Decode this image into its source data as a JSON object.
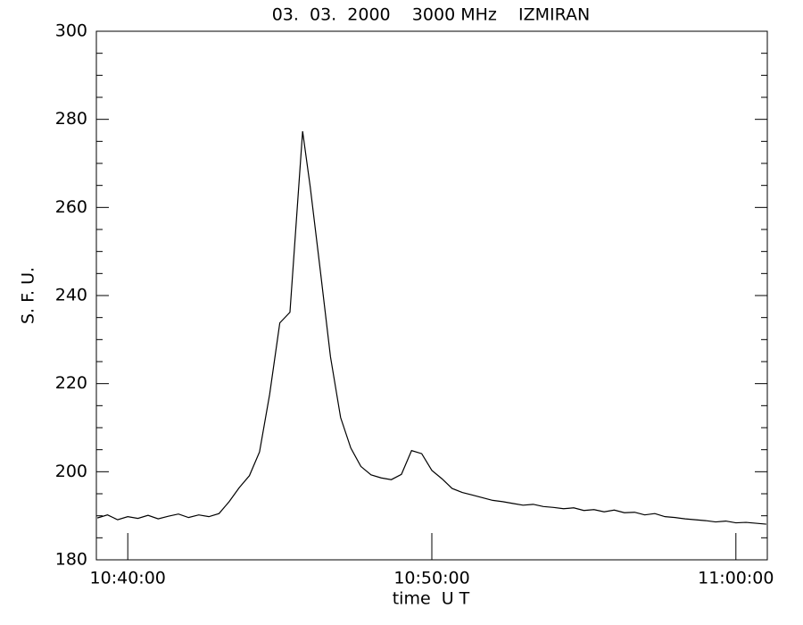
{
  "chart_data": {
    "type": "line",
    "title": "03.  03.  2000    3000 MHz    IZMIRAN",
    "x_label": "time  U T",
    "y_label": "S. F. U.",
    "x": [
      "10:39:00",
      "10:39:20",
      "10:39:40",
      "10:40:00",
      "10:40:20",
      "10:40:40",
      "10:41:00",
      "10:41:20",
      "10:41:40",
      "10:42:00",
      "10:42:20",
      "10:42:40",
      "10:43:00",
      "10:43:20",
      "10:43:40",
      "10:44:00",
      "10:44:20",
      "10:44:40",
      "10:45:00",
      "10:45:20",
      "10:45:45",
      "10:46:00",
      "10:46:20",
      "10:46:40",
      "10:47:00",
      "10:47:20",
      "10:47:40",
      "10:48:00",
      "10:48:20",
      "10:48:40",
      "10:49:00",
      "10:49:20",
      "10:49:40",
      "10:50:00",
      "10:50:20",
      "10:50:40",
      "10:51:00",
      "10:51:20",
      "10:51:40",
      "10:52:00",
      "10:52:20",
      "10:52:40",
      "10:53:00",
      "10:53:20",
      "10:53:40",
      "10:54:00",
      "10:54:20",
      "10:54:40",
      "10:55:00",
      "10:55:20",
      "10:55:40",
      "10:56:00",
      "10:56:20",
      "10:56:40",
      "10:57:00",
      "10:57:20",
      "10:57:40",
      "10:58:00",
      "10:58:20",
      "10:58:40",
      "10:59:00",
      "10:59:20",
      "10:59:40",
      "11:00:00",
      "11:00:20",
      "11:00:40",
      "11:01:00"
    ],
    "series": [
      {
        "color": "#000000",
        "values": [
          189.5,
          190.2,
          189.1,
          189.8,
          189.4,
          190.1,
          189.3,
          189.9,
          190.4,
          189.6,
          190.2,
          189.8,
          190.5,
          193.2,
          196.4,
          199.1,
          204.5,
          217.6,
          233.8,
          236.2,
          277.3,
          264.7,
          245.6,
          226.1,
          212.3,
          205.4,
          201.2,
          199.3,
          198.6,
          198.2,
          199.4,
          204.8,
          204.1,
          200.3,
          198.4,
          196.2,
          195.3,
          194.7,
          194.1,
          193.5,
          193.2,
          192.8,
          192.4,
          192.6,
          192.1,
          191.9,
          191.6,
          191.8,
          191.2,
          191.4,
          190.9,
          191.3,
          190.7,
          190.8,
          190.2,
          190.5,
          189.8,
          189.6,
          189.3,
          189.1,
          188.9,
          188.6,
          188.8,
          188.4,
          188.5,
          188.3,
          188.1
        ]
      }
    ],
    "xlim": [
      "10:38:58",
      "11:01:02"
    ],
    "xticks": [
      "10:40:00",
      "10:50:00",
      "11:00:00"
    ],
    "ylim": [
      180,
      300
    ],
    "yticks": [
      180,
      200,
      220,
      240,
      260,
      280,
      300
    ]
  }
}
